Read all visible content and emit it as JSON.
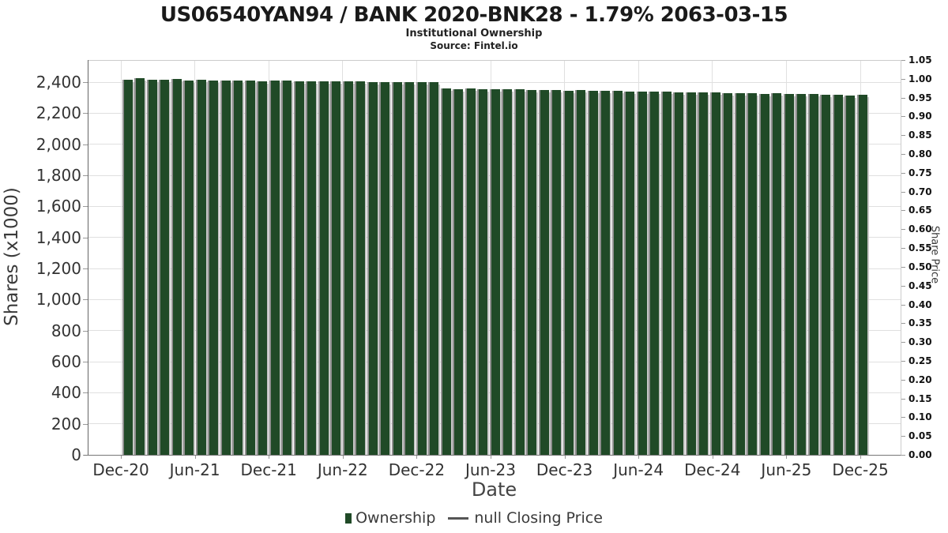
{
  "header": {
    "title": "US06540YAN94 / BANK 2020-BNK28 - 1.79% 2063-03-15",
    "subtitle": "Institutional Ownership",
    "source": "Source: Fintel.io"
  },
  "legend": {
    "ownership_label": "Ownership",
    "price_label": "null Closing Price"
  },
  "colors": {
    "bar": "#204a27",
    "bar_edge_left": "#8f8f8f",
    "bar_edge_right": "#c6c6c6",
    "grid": "#e0e0e0",
    "axis": "#777777",
    "frame": "#cccccc"
  },
  "chart_data": {
    "type": "bar",
    "title": "US06540YAN94 / BANK 2020-BNK28 - 1.79% 2063-03-15",
    "subtitle": "Institutional Ownership",
    "source": "Source: Fintel.io",
    "xlabel": "Date",
    "ylabel_left": "Shares (x1000)",
    "ylabel_right": "Share Price",
    "series_name": "Ownership",
    "price_series_name": "null Closing Price",
    "legend_position": "bottom",
    "grid": true,
    "x": [
      "Dec-20",
      "Jan-21",
      "Feb-21",
      "Mar-21",
      "Apr-21",
      "May-21",
      "Jun-21",
      "Jul-21",
      "Aug-21",
      "Sep-21",
      "Oct-21",
      "Nov-21",
      "Dec-21",
      "Jan-22",
      "Feb-22",
      "Mar-22",
      "Apr-22",
      "May-22",
      "Jun-22",
      "Jul-22",
      "Aug-22",
      "Sep-22",
      "Oct-22",
      "Nov-22",
      "Dec-22",
      "Jan-23",
      "Feb-23",
      "Mar-23",
      "Apr-23",
      "May-23",
      "Jun-23",
      "Jul-23",
      "Aug-23",
      "Sep-23",
      "Oct-23",
      "Nov-23",
      "Dec-23",
      "Jan-24",
      "Feb-24",
      "Mar-24",
      "Apr-24",
      "May-24",
      "Jun-24",
      "Jul-24",
      "Aug-24",
      "Sep-24",
      "Oct-24",
      "Nov-24",
      "Dec-24",
      "Jan-25",
      "Feb-25",
      "Mar-25",
      "Apr-25",
      "May-25",
      "Jun-25",
      "Jul-25",
      "Aug-25",
      "Sep-25",
      "Oct-25",
      "Nov-25",
      "Dec-25"
    ],
    "values": [
      2416,
      2423,
      2414,
      2417,
      2418,
      2411,
      2414,
      2412,
      2408,
      2411,
      2409,
      2407,
      2410,
      2408,
      2405,
      2407,
      2404,
      2406,
      2403,
      2405,
      2402,
      2400,
      2402,
      2398,
      2400,
      2398,
      2358,
      2356,
      2357,
      2354,
      2355,
      2352,
      2353,
      2350,
      2348,
      2349,
      2346,
      2347,
      2344,
      2345,
      2342,
      2340,
      2341,
      2338,
      2339,
      2336,
      2334,
      2335,
      2332,
      2330,
      2331,
      2328,
      2326,
      2327,
      2324,
      2322,
      2323,
      2320,
      2318,
      2316,
      2318
    ],
    "left_axis": {
      "ticks": [
        "0",
        "200",
        "400",
        "600",
        "800",
        "1,000",
        "1,200",
        "1,400",
        "1,600",
        "1,800",
        "2,000",
        "2,200",
        "2,400"
      ],
      "tick_step": 200,
      "min": 0,
      "max_gridline": 2400
    },
    "right_axis": {
      "ticks": [
        "0.00",
        "0.05",
        "0.10",
        "0.15",
        "0.20",
        "0.25",
        "0.30",
        "0.35",
        "0.40",
        "0.45",
        "0.50",
        "0.55",
        "0.60",
        "0.65",
        "0.70",
        "0.75",
        "0.80",
        "0.85",
        "0.90",
        "0.95",
        "1.00",
        "1.05"
      ],
      "tick_step": 0.05,
      "min": 0.0,
      "max": 1.05
    },
    "x_ticks": [
      "Dec-20",
      "Jun-21",
      "Dec-21",
      "Jun-22",
      "Dec-22",
      "Jun-23",
      "Dec-23",
      "Jun-24",
      "Dec-24",
      "Jun-25",
      "Dec-25"
    ],
    "x_tick_month_step": 6
  }
}
